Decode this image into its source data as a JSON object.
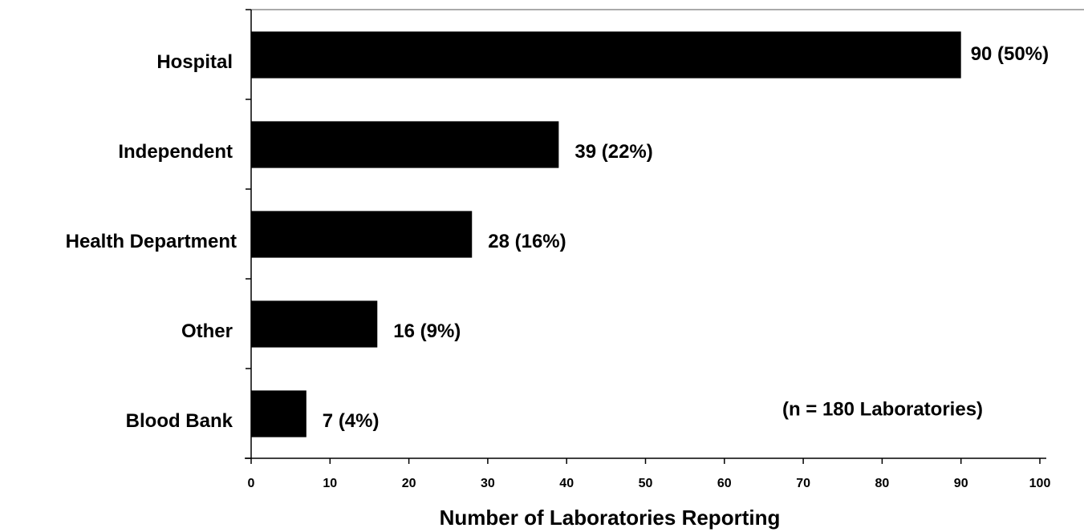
{
  "chart_data": {
    "type": "bar",
    "orientation": "horizontal",
    "categories": [
      "Hospital",
      "Independent",
      "Health Department",
      "Other",
      "Blood Bank"
    ],
    "values": [
      90,
      39,
      28,
      16,
      7
    ],
    "value_labels": [
      "90 (50%)",
      "39 (22%)",
      "28 (16%)",
      "16 (9%)",
      "7 (4%)"
    ],
    "color": "#000000",
    "xlabel": "Number of Laboratories Reporting",
    "annotation": "(n = 180 Laboratories)",
    "xlim": [
      0,
      100
    ],
    "xticks": [
      0,
      10,
      20,
      30,
      40,
      50,
      60,
      70,
      80,
      90,
      100
    ],
    "grid": false
  }
}
